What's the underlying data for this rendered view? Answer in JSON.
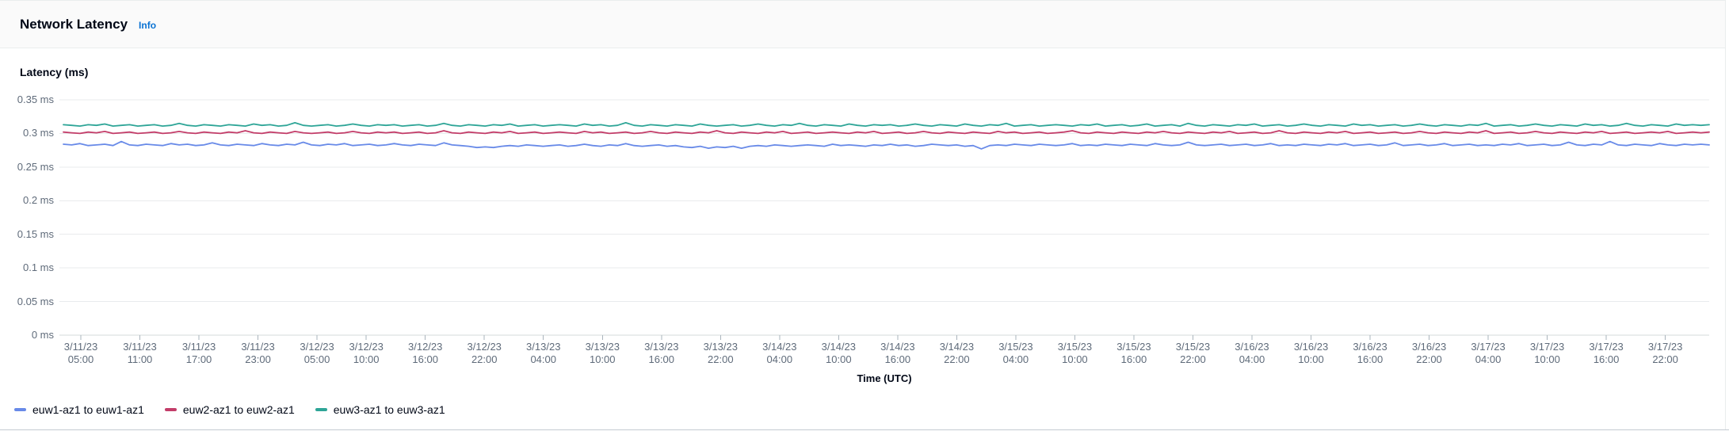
{
  "header": {
    "title": "Network Latency",
    "info_label": "Info"
  },
  "axes": {
    "y_title": "Latency (ms)",
    "x_title": "Time (UTC)",
    "y_ticks": [
      {
        "label": "0.35 ms",
        "value": 0.35
      },
      {
        "label": "0.3 ms",
        "value": 0.3
      },
      {
        "label": "0.25 ms",
        "value": 0.25
      },
      {
        "label": "0.2 ms",
        "value": 0.2
      },
      {
        "label": "0.15 ms",
        "value": 0.15
      },
      {
        "label": "0.1 ms",
        "value": 0.1
      },
      {
        "label": "0.05 ms",
        "value": 0.05
      },
      {
        "label": "0 ms",
        "value": 0
      }
    ],
    "x_ticks": [
      {
        "date": "3/11/23",
        "time": "05:00",
        "hour": 0
      },
      {
        "date": "3/11/23",
        "time": "11:00",
        "hour": 6
      },
      {
        "date": "3/11/23",
        "time": "17:00",
        "hour": 12
      },
      {
        "date": "3/11/23",
        "time": "23:00",
        "hour": 18
      },
      {
        "date": "3/12/23",
        "time": "05:00",
        "hour": 24
      },
      {
        "date": "3/12/23",
        "time": "10:00",
        "hour": 29
      },
      {
        "date": "3/12/23",
        "time": "16:00",
        "hour": 35
      },
      {
        "date": "3/12/23",
        "time": "22:00",
        "hour": 41
      },
      {
        "date": "3/13/23",
        "time": "04:00",
        "hour": 47
      },
      {
        "date": "3/13/23",
        "time": "10:00",
        "hour": 53
      },
      {
        "date": "3/13/23",
        "time": "16:00",
        "hour": 59
      },
      {
        "date": "3/13/23",
        "time": "22:00",
        "hour": 65
      },
      {
        "date": "3/14/23",
        "time": "04:00",
        "hour": 71
      },
      {
        "date": "3/14/23",
        "time": "10:00",
        "hour": 77
      },
      {
        "date": "3/14/23",
        "time": "16:00",
        "hour": 83
      },
      {
        "date": "3/14/23",
        "time": "22:00",
        "hour": 89
      },
      {
        "date": "3/15/23",
        "time": "04:00",
        "hour": 95
      },
      {
        "date": "3/15/23",
        "time": "10:00",
        "hour": 101
      },
      {
        "date": "3/15/23",
        "time": "16:00",
        "hour": 107
      },
      {
        "date": "3/15/23",
        "time": "22:00",
        "hour": 113
      },
      {
        "date": "3/16/23",
        "time": "04:00",
        "hour": 119
      },
      {
        "date": "3/16/23",
        "time": "10:00",
        "hour": 125
      },
      {
        "date": "3/16/23",
        "time": "16:00",
        "hour": 131
      },
      {
        "date": "3/16/23",
        "time": "22:00",
        "hour": 137
      },
      {
        "date": "3/17/23",
        "time": "04:00",
        "hour": 143
      },
      {
        "date": "3/17/23",
        "time": "10:00",
        "hour": 149
      },
      {
        "date": "3/17/23",
        "time": "16:00",
        "hour": 155
      },
      {
        "date": "3/17/23",
        "time": "22:00",
        "hour": 161
      }
    ]
  },
  "chart_data": {
    "type": "line",
    "title": "Network Latency",
    "xlabel": "Time (UTC)",
    "ylabel": "Latency (ms)",
    "unit": "ms",
    "ylim": [
      0,
      0.35
    ],
    "grid": true,
    "legend_position": "bottom",
    "x_range": [
      "3/11/23 04:00",
      "3/18/23 00:00"
    ],
    "series": [
      {
        "name": "euw1-az1 to euw1-az1",
        "color": "#688ae8",
        "approx_mean": 0.283,
        "values": [
          0.284,
          0.283,
          0.285,
          0.282,
          0.283,
          0.284,
          0.282,
          0.288,
          0.283,
          0.282,
          0.284,
          0.283,
          0.282,
          0.285,
          0.283,
          0.284,
          0.282,
          0.283,
          0.286,
          0.283,
          0.282,
          0.284,
          0.283,
          0.282,
          0.285,
          0.283,
          0.282,
          0.284,
          0.283,
          0.287,
          0.283,
          0.282,
          0.284,
          0.283,
          0.285,
          0.282,
          0.283,
          0.284,
          0.282,
          0.283,
          0.285,
          0.283,
          0.282,
          0.284,
          0.283,
          0.282,
          0.286,
          0.283,
          0.282,
          0.281,
          0.279,
          0.28,
          0.279,
          0.281,
          0.282,
          0.281,
          0.283,
          0.282,
          0.281,
          0.282,
          0.283,
          0.281,
          0.282,
          0.284,
          0.282,
          0.281,
          0.283,
          0.282,
          0.285,
          0.282,
          0.281,
          0.282,
          0.283,
          0.281,
          0.282,
          0.28,
          0.279,
          0.281,
          0.278,
          0.28,
          0.279,
          0.281,
          0.278,
          0.281,
          0.282,
          0.281,
          0.283,
          0.282,
          0.281,
          0.282,
          0.283,
          0.282,
          0.281,
          0.284,
          0.282,
          0.283,
          0.282,
          0.281,
          0.283,
          0.282,
          0.284,
          0.282,
          0.283,
          0.281,
          0.282,
          0.284,
          0.283,
          0.282,
          0.283,
          0.281,
          0.282,
          0.277,
          0.282,
          0.283,
          0.282,
          0.284,
          0.283,
          0.282,
          0.284,
          0.283,
          0.282,
          0.283,
          0.285,
          0.282,
          0.283,
          0.282,
          0.284,
          0.283,
          0.282,
          0.284,
          0.283,
          0.282,
          0.285,
          0.283,
          0.282,
          0.283,
          0.287,
          0.283,
          0.282,
          0.283,
          0.284,
          0.282,
          0.283,
          0.284,
          0.282,
          0.283,
          0.285,
          0.282,
          0.283,
          0.282,
          0.284,
          0.283,
          0.282,
          0.284,
          0.283,
          0.285,
          0.282,
          0.283,
          0.284,
          0.282,
          0.283,
          0.286,
          0.282,
          0.283,
          0.284,
          0.282,
          0.283,
          0.285,
          0.282,
          0.283,
          0.284,
          0.282,
          0.283,
          0.282,
          0.284,
          0.283,
          0.285,
          0.282,
          0.283,
          0.284,
          0.282,
          0.283,
          0.287,
          0.283,
          0.282,
          0.284,
          0.283,
          0.288,
          0.283,
          0.282,
          0.284,
          0.283,
          0.282,
          0.285,
          0.283,
          0.282,
          0.284,
          0.283,
          0.284,
          0.283
        ]
      },
      {
        "name": "euw2-az1 to euw2-az1",
        "color": "#c33d69",
        "approx_mean": 0.301,
        "values": [
          0.302,
          0.301,
          0.3,
          0.302,
          0.301,
          0.303,
          0.3,
          0.301,
          0.302,
          0.3,
          0.301,
          0.302,
          0.3,
          0.301,
          0.303,
          0.301,
          0.3,
          0.302,
          0.301,
          0.3,
          0.302,
          0.301,
          0.304,
          0.301,
          0.3,
          0.302,
          0.301,
          0.3,
          0.303,
          0.301,
          0.3,
          0.301,
          0.302,
          0.3,
          0.301,
          0.303,
          0.301,
          0.3,
          0.302,
          0.301,
          0.302,
          0.3,
          0.301,
          0.302,
          0.3,
          0.301,
          0.304,
          0.301,
          0.3,
          0.302,
          0.301,
          0.3,
          0.302,
          0.301,
          0.303,
          0.3,
          0.301,
          0.302,
          0.3,
          0.301,
          0.302,
          0.301,
          0.3,
          0.303,
          0.301,
          0.302,
          0.3,
          0.301,
          0.302,
          0.3,
          0.301,
          0.303,
          0.301,
          0.3,
          0.302,
          0.301,
          0.3,
          0.302,
          0.301,
          0.304,
          0.301,
          0.3,
          0.302,
          0.301,
          0.3,
          0.302,
          0.301,
          0.303,
          0.3,
          0.301,
          0.302,
          0.3,
          0.301,
          0.302,
          0.301,
          0.3,
          0.302,
          0.301,
          0.303,
          0.3,
          0.301,
          0.302,
          0.3,
          0.301,
          0.303,
          0.301,
          0.3,
          0.302,
          0.301,
          0.3,
          0.302,
          0.301,
          0.3,
          0.303,
          0.301,
          0.302,
          0.3,
          0.301,
          0.302,
          0.3,
          0.301,
          0.302,
          0.304,
          0.301,
          0.3,
          0.302,
          0.301,
          0.3,
          0.302,
          0.301,
          0.3,
          0.302,
          0.301,
          0.303,
          0.301,
          0.3,
          0.302,
          0.301,
          0.3,
          0.302,
          0.301,
          0.303,
          0.3,
          0.301,
          0.302,
          0.3,
          0.301,
          0.304,
          0.301,
          0.3,
          0.302,
          0.301,
          0.3,
          0.302,
          0.301,
          0.303,
          0.3,
          0.301,
          0.302,
          0.3,
          0.301,
          0.302,
          0.3,
          0.301,
          0.303,
          0.301,
          0.3,
          0.302,
          0.301,
          0.3,
          0.302,
          0.301,
          0.304,
          0.3,
          0.301,
          0.302,
          0.3,
          0.301,
          0.303,
          0.301,
          0.3,
          0.302,
          0.301,
          0.3,
          0.302,
          0.301,
          0.303,
          0.3,
          0.301,
          0.302,
          0.3,
          0.301,
          0.302,
          0.301,
          0.303,
          0.3,
          0.301,
          0.302,
          0.301,
          0.302
        ]
      },
      {
        "name": "euw3-az1 to euw3-az1",
        "color": "#2ea597",
        "approx_mean": 0.312,
        "values": [
          0.313,
          0.312,
          0.311,
          0.313,
          0.312,
          0.314,
          0.311,
          0.312,
          0.313,
          0.311,
          0.312,
          0.313,
          0.311,
          0.312,
          0.315,
          0.312,
          0.311,
          0.313,
          0.312,
          0.311,
          0.313,
          0.312,
          0.311,
          0.314,
          0.312,
          0.313,
          0.311,
          0.312,
          0.316,
          0.312,
          0.311,
          0.312,
          0.313,
          0.311,
          0.312,
          0.314,
          0.312,
          0.311,
          0.313,
          0.312,
          0.313,
          0.311,
          0.312,
          0.313,
          0.311,
          0.312,
          0.315,
          0.312,
          0.311,
          0.313,
          0.312,
          0.311,
          0.313,
          0.312,
          0.314,
          0.311,
          0.312,
          0.313,
          0.311,
          0.312,
          0.313,
          0.312,
          0.311,
          0.314,
          0.312,
          0.313,
          0.311,
          0.312,
          0.316,
          0.312,
          0.311,
          0.313,
          0.312,
          0.311,
          0.313,
          0.312,
          0.311,
          0.314,
          0.312,
          0.311,
          0.312,
          0.313,
          0.311,
          0.312,
          0.314,
          0.312,
          0.311,
          0.313,
          0.312,
          0.315,
          0.312,
          0.311,
          0.313,
          0.312,
          0.311,
          0.314,
          0.312,
          0.311,
          0.313,
          0.312,
          0.313,
          0.311,
          0.312,
          0.314,
          0.312,
          0.311,
          0.313,
          0.312,
          0.311,
          0.314,
          0.312,
          0.311,
          0.313,
          0.312,
          0.315,
          0.311,
          0.312,
          0.313,
          0.311,
          0.312,
          0.313,
          0.312,
          0.311,
          0.313,
          0.312,
          0.314,
          0.311,
          0.312,
          0.313,
          0.311,
          0.312,
          0.314,
          0.311,
          0.312,
          0.313,
          0.311,
          0.315,
          0.312,
          0.311,
          0.313,
          0.312,
          0.311,
          0.313,
          0.312,
          0.314,
          0.311,
          0.312,
          0.313,
          0.311,
          0.312,
          0.314,
          0.312,
          0.311,
          0.313,
          0.312,
          0.311,
          0.314,
          0.312,
          0.313,
          0.311,
          0.312,
          0.313,
          0.311,
          0.312,
          0.314,
          0.312,
          0.311,
          0.313,
          0.312,
          0.311,
          0.313,
          0.312,
          0.315,
          0.311,
          0.312,
          0.313,
          0.311,
          0.312,
          0.314,
          0.312,
          0.311,
          0.313,
          0.312,
          0.311,
          0.314,
          0.312,
          0.313,
          0.311,
          0.312,
          0.315,
          0.312,
          0.311,
          0.313,
          0.312,
          0.311,
          0.314,
          0.312,
          0.313,
          0.312,
          0.313
        ]
      }
    ]
  },
  "colors": {
    "link": "#0972d3",
    "grid": "#e9ebed",
    "axis": "#d5dbdb",
    "tick": "#aab4bc",
    "text_muted": "#5f6b7a",
    "text_dark": "#000716",
    "header_bg": "#fafafa",
    "border": "#eaeded",
    "divider": "#c4cbd1"
  }
}
